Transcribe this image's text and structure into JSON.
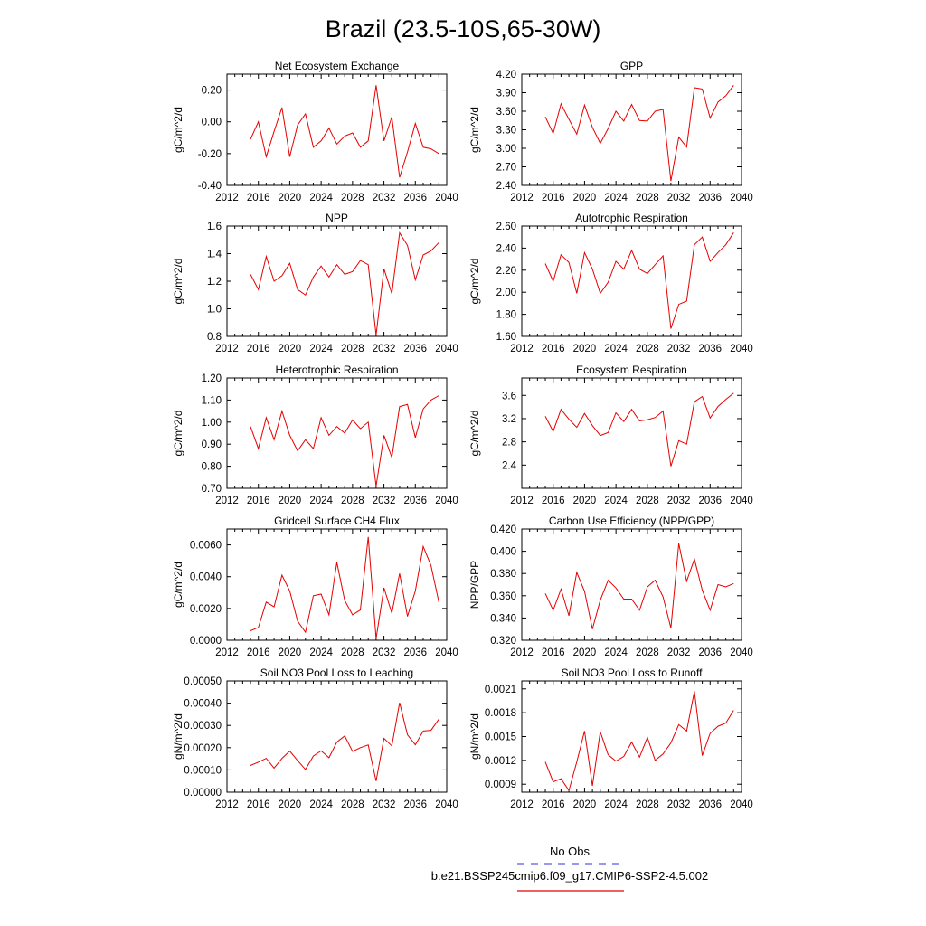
{
  "title": "Brazil (23.5-10S,65-30W)",
  "legend": {
    "obs_label": "No Obs",
    "obs_color": "#5a5ae6",
    "case_label": "b.e21.BSSP245cmip6.f09_g17.CMIP6-SSP2-4.5.002",
    "case_color": "#e60000"
  },
  "line_color": "#e60000",
  "chart_data": [
    {
      "type": "line",
      "title": "Net Ecosystem Exchange",
      "ylabel": "gC/m^2/d",
      "xlim": [
        2012,
        2040
      ],
      "ylim": [
        -0.4,
        0.3
      ],
      "xticks": [
        "2012",
        "2016",
        "2020",
        "2024",
        "2028",
        "2032",
        "2036",
        "2040"
      ],
      "yticks": [
        "-0.40",
        "-0.20",
        "0.00",
        "0.20"
      ],
      "x": [
        2015,
        2016,
        2017,
        2018,
        2019,
        2020,
        2021,
        2022,
        2023,
        2024,
        2025,
        2026,
        2027,
        2028,
        2029,
        2030,
        2031,
        2032,
        2033,
        2034,
        2035,
        2036,
        2037,
        2038,
        2039
      ],
      "series": [
        {
          "values": [
            -0.11,
            0.0,
            -0.22,
            -0.06,
            0.09,
            -0.22,
            -0.02,
            0.05,
            -0.16,
            -0.12,
            -0.04,
            -0.14,
            -0.09,
            -0.07,
            -0.16,
            -0.12,
            0.23,
            -0.12,
            0.03,
            -0.35,
            -0.19,
            -0.01,
            -0.16,
            -0.17,
            -0.2
          ]
        }
      ]
    },
    {
      "type": "line",
      "title": "GPP",
      "ylabel": "gC/m^2/d",
      "xlim": [
        2012,
        2040
      ],
      "ylim": [
        2.4,
        4.2
      ],
      "xticks": [
        "2012",
        "2016",
        "2020",
        "2024",
        "2028",
        "2032",
        "2036",
        "2040"
      ],
      "yticks": [
        "2.40",
        "2.70",
        "3.00",
        "3.30",
        "3.60",
        "3.90",
        "4.20"
      ],
      "x": [
        2015,
        2016,
        2017,
        2018,
        2019,
        2020,
        2021,
        2022,
        2023,
        2024,
        2025,
        2026,
        2027,
        2028,
        2029,
        2030,
        2031,
        2032,
        2033,
        2034,
        2035,
        2036,
        2037,
        2038,
        2039
      ],
      "series": [
        {
          "values": [
            3.51,
            3.24,
            3.72,
            3.47,
            3.23,
            3.7,
            3.34,
            3.08,
            3.32,
            3.6,
            3.44,
            3.71,
            3.45,
            3.44,
            3.6,
            3.63,
            2.47,
            3.18,
            3.02,
            3.98,
            3.96,
            3.49,
            3.75,
            3.85,
            4.02
          ]
        }
      ]
    },
    {
      "type": "line",
      "title": "NPP",
      "ylabel": "gC/m^2/d",
      "xlim": [
        2012,
        2040
      ],
      "ylim": [
        0.8,
        1.6
      ],
      "xticks": [
        "2012",
        "2016",
        "2020",
        "2024",
        "2028",
        "2032",
        "2036",
        "2040"
      ],
      "yticks": [
        "0.8",
        "1.0",
        "1.2",
        "1.4",
        "1.6"
      ],
      "x": [
        2015,
        2016,
        2017,
        2018,
        2019,
        2020,
        2021,
        2022,
        2023,
        2024,
        2025,
        2026,
        2027,
        2028,
        2029,
        2030,
        2031,
        2032,
        2033,
        2034,
        2035,
        2036,
        2037,
        2038,
        2039
      ],
      "series": [
        {
          "values": [
            1.25,
            1.14,
            1.38,
            1.2,
            1.24,
            1.33,
            1.14,
            1.1,
            1.23,
            1.31,
            1.23,
            1.32,
            1.25,
            1.27,
            1.35,
            1.32,
            0.81,
            1.29,
            1.11,
            1.55,
            1.46,
            1.21,
            1.39,
            1.42,
            1.48
          ]
        }
      ]
    },
    {
      "type": "line",
      "title": "Autotrophic Respiration",
      "ylabel": "gC/m^2/d",
      "xlim": [
        2012,
        2040
      ],
      "ylim": [
        1.6,
        2.6
      ],
      "xticks": [
        "2012",
        "2016",
        "2020",
        "2024",
        "2028",
        "2032",
        "2036",
        "2040"
      ],
      "yticks": [
        "1.60",
        "1.80",
        "2.00",
        "2.20",
        "2.40",
        "2.60"
      ],
      "x": [
        2015,
        2016,
        2017,
        2018,
        2019,
        2020,
        2021,
        2022,
        2023,
        2024,
        2025,
        2026,
        2027,
        2028,
        2029,
        2030,
        2031,
        2032,
        2033,
        2034,
        2035,
        2036,
        2037,
        2038,
        2039
      ],
      "series": [
        {
          "values": [
            2.26,
            2.1,
            2.34,
            2.27,
            1.99,
            2.36,
            2.21,
            1.99,
            2.09,
            2.28,
            2.21,
            2.38,
            2.21,
            2.17,
            2.25,
            2.33,
            1.67,
            1.89,
            1.92,
            2.43,
            2.5,
            2.28,
            2.36,
            2.43,
            2.54
          ]
        }
      ]
    },
    {
      "type": "line",
      "title": "Heterotrophic Respiration",
      "ylabel": "gC/m^2/d",
      "xlim": [
        2012,
        2040
      ],
      "ylim": [
        0.7,
        1.2
      ],
      "xticks": [
        "2012",
        "2016",
        "2020",
        "2024",
        "2028",
        "2032",
        "2036",
        "2040"
      ],
      "yticks": [
        "0.70",
        "0.80",
        "0.90",
        "1.00",
        "1.10",
        "1.20"
      ],
      "x": [
        2015,
        2016,
        2017,
        2018,
        2019,
        2020,
        2021,
        2022,
        2023,
        2024,
        2025,
        2026,
        2027,
        2028,
        2029,
        2030,
        2031,
        2032,
        2033,
        2034,
        2035,
        2036,
        2037,
        2038,
        2039
      ],
      "series": [
        {
          "values": [
            0.98,
            0.88,
            1.02,
            0.92,
            1.05,
            0.94,
            0.87,
            0.92,
            0.88,
            1.02,
            0.94,
            0.98,
            0.95,
            1.01,
            0.97,
            1.0,
            0.71,
            0.94,
            0.84,
            1.07,
            1.08,
            0.93,
            1.06,
            1.1,
            1.12
          ]
        }
      ]
    },
    {
      "type": "line",
      "title": "Ecosystem Respiration",
      "ylabel": "gC/m^2/d",
      "xlim": [
        2012,
        2040
      ],
      "ylim": [
        2.0,
        3.9
      ],
      "xticks": [
        "2012",
        "2016",
        "2020",
        "2024",
        "2028",
        "2032",
        "2036",
        "2040"
      ],
      "yticks": [
        "2.4",
        "2.8",
        "3.2",
        "3.6"
      ],
      "x": [
        2015,
        2016,
        2017,
        2018,
        2019,
        2020,
        2021,
        2022,
        2023,
        2024,
        2025,
        2026,
        2027,
        2028,
        2029,
        2030,
        2031,
        2032,
        2033,
        2034,
        2035,
        2036,
        2037,
        2038,
        2039
      ],
      "series": [
        {
          "values": [
            3.24,
            2.98,
            3.36,
            3.19,
            3.05,
            3.29,
            3.08,
            2.91,
            2.96,
            3.3,
            3.15,
            3.36,
            3.16,
            3.18,
            3.22,
            3.33,
            2.38,
            2.82,
            2.76,
            3.49,
            3.58,
            3.21,
            3.41,
            3.53,
            3.64
          ]
        }
      ]
    },
    {
      "type": "line",
      "title": "Gridcell Surface CH4 Flux",
      "ylabel": "gC/m^2/d",
      "xlim": [
        2012,
        2040
      ],
      "ylim": [
        0.0,
        0.007
      ],
      "xticks": [
        "2012",
        "2016",
        "2020",
        "2024",
        "2028",
        "2032",
        "2036",
        "2040"
      ],
      "yticks": [
        "0.0000",
        "0.0020",
        "0.0040",
        "0.0060"
      ],
      "x": [
        2015,
        2016,
        2017,
        2018,
        2019,
        2020,
        2021,
        2022,
        2023,
        2024,
        2025,
        2026,
        2027,
        2028,
        2029,
        2030,
        2031,
        2032,
        2033,
        2034,
        2035,
        2036,
        2037,
        2038,
        2039
      ],
      "series": [
        {
          "values": [
            0.0006,
            0.0008,
            0.0024,
            0.0021,
            0.0041,
            0.0031,
            0.0012,
            0.0005,
            0.0028,
            0.0029,
            0.0016,
            0.0049,
            0.0025,
            0.0016,
            0.0019,
            0.0065,
            0.0001,
            0.0033,
            0.0017,
            0.0042,
            0.0015,
            0.0031,
            0.0059,
            0.0047,
            0.0024
          ]
        }
      ]
    },
    {
      "type": "line",
      "title": "Carbon Use Efficiency (NPP/GPP)",
      "ylabel": "NPP/GPP",
      "xlim": [
        2012,
        2040
      ],
      "ylim": [
        0.32,
        0.42
      ],
      "xticks": [
        "2012",
        "2016",
        "2020",
        "2024",
        "2028",
        "2032",
        "2036",
        "2040"
      ],
      "yticks": [
        "0.320",
        "0.340",
        "0.360",
        "0.380",
        "0.400",
        "0.420"
      ],
      "x": [
        2015,
        2016,
        2017,
        2018,
        2019,
        2020,
        2021,
        2022,
        2023,
        2024,
        2025,
        2026,
        2027,
        2028,
        2029,
        2030,
        2031,
        2032,
        2033,
        2034,
        2035,
        2036,
        2037,
        2038,
        2039
      ],
      "series": [
        {
          "values": [
            0.362,
            0.347,
            0.366,
            0.342,
            0.381,
            0.364,
            0.33,
            0.356,
            0.374,
            0.367,
            0.357,
            0.357,
            0.347,
            0.368,
            0.374,
            0.359,
            0.331,
            0.407,
            0.373,
            0.393,
            0.365,
            0.347,
            0.37,
            0.368,
            0.371
          ]
        }
      ]
    },
    {
      "type": "line",
      "title": "Soil NO3 Pool Loss to Leaching",
      "ylabel": "gN/m^2/d",
      "xlim": [
        2012,
        2040
      ],
      "ylim": [
        0.0,
        0.0005
      ],
      "xticks": [
        "2012",
        "2016",
        "2020",
        "2024",
        "2028",
        "2032",
        "2036",
        "2040"
      ],
      "yticks": [
        "0.00000",
        "0.00010",
        "0.00020",
        "0.00030",
        "0.00040",
        "0.00050"
      ],
      "x": [
        2015,
        2016,
        2017,
        2018,
        2019,
        2020,
        2021,
        2022,
        2023,
        2024,
        2025,
        2026,
        2027,
        2028,
        2029,
        2030,
        2031,
        2032,
        2033,
        2034,
        2035,
        2036,
        2037,
        2038,
        2039
      ],
      "series": [
        {
          "values": [
            0.00012,
            0.000135,
            0.000152,
            0.000108,
            0.000152,
            0.000185,
            0.000142,
            0.000102,
            0.000162,
            0.000186,
            0.000155,
            0.000225,
            0.000253,
            0.000183,
            0.0002,
            0.000212,
            5e-05,
            0.000242,
            0.000208,
            0.000402,
            0.000258,
            0.000213,
            0.000275,
            0.000278,
            0.000328
          ]
        }
      ]
    },
    {
      "type": "line",
      "title": "Soil NO3 Pool Loss to Runoff",
      "ylabel": "gN/m^2/d",
      "xlim": [
        2012,
        2040
      ],
      "ylim": [
        0.0008,
        0.0022
      ],
      "xticks": [
        "2012",
        "2016",
        "2020",
        "2024",
        "2028",
        "2032",
        "2036",
        "2040"
      ],
      "yticks": [
        "0.0009",
        "0.0012",
        "0.0015",
        "0.0018",
        "0.0021"
      ],
      "x": [
        2015,
        2016,
        2017,
        2018,
        2019,
        2020,
        2021,
        2022,
        2023,
        2024,
        2025,
        2026,
        2027,
        2028,
        2029,
        2030,
        2031,
        2032,
        2033,
        2034,
        2035,
        2036,
        2037,
        2038,
        2039
      ],
      "series": [
        {
          "values": [
            0.00118,
            0.00093,
            0.00097,
            0.00082,
            0.00118,
            0.00157,
            0.00088,
            0.00156,
            0.00127,
            0.00119,
            0.00125,
            0.00143,
            0.00124,
            0.00149,
            0.0012,
            0.00128,
            0.00142,
            0.00165,
            0.00157,
            0.00207,
            0.00126,
            0.00154,
            0.00163,
            0.00167,
            0.00183
          ]
        }
      ]
    }
  ]
}
